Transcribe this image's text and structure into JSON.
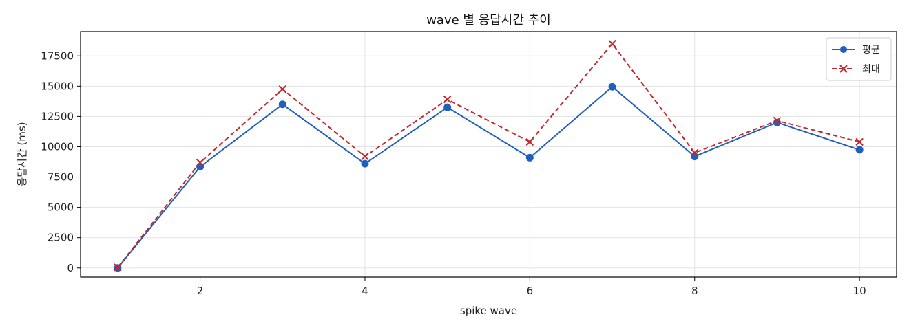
{
  "chart_data": {
    "type": "line",
    "title": "wave 별 응답시간 추이",
    "xlabel": "spike wave",
    "ylabel": "응답시간 (ms)",
    "x": [
      1,
      2,
      3,
      4,
      5,
      6,
      7,
      8,
      9,
      10
    ],
    "xlim": [
      0.55,
      10.45
    ],
    "ylim": [
      -750,
      19500
    ],
    "xticks": [
      2,
      4,
      6,
      8,
      10
    ],
    "yticks": [
      0,
      2500,
      5000,
      7500,
      10000,
      12500,
      15000,
      17500
    ],
    "grid": true,
    "legend_position": "top-right",
    "series": [
      {
        "name": "평균",
        "marker": "circle",
        "line_style": "solid",
        "color": "#1f5fbf",
        "values": [
          0,
          8350,
          13500,
          8600,
          13250,
          9100,
          14950,
          9200,
          12000,
          9750
        ]
      },
      {
        "name": "최대",
        "marker": "x",
        "line_style": "dashed",
        "color": "#c0282d",
        "values": [
          50,
          8700,
          14750,
          9200,
          13900,
          10400,
          18500,
          9500,
          12150,
          10400
        ]
      }
    ]
  }
}
